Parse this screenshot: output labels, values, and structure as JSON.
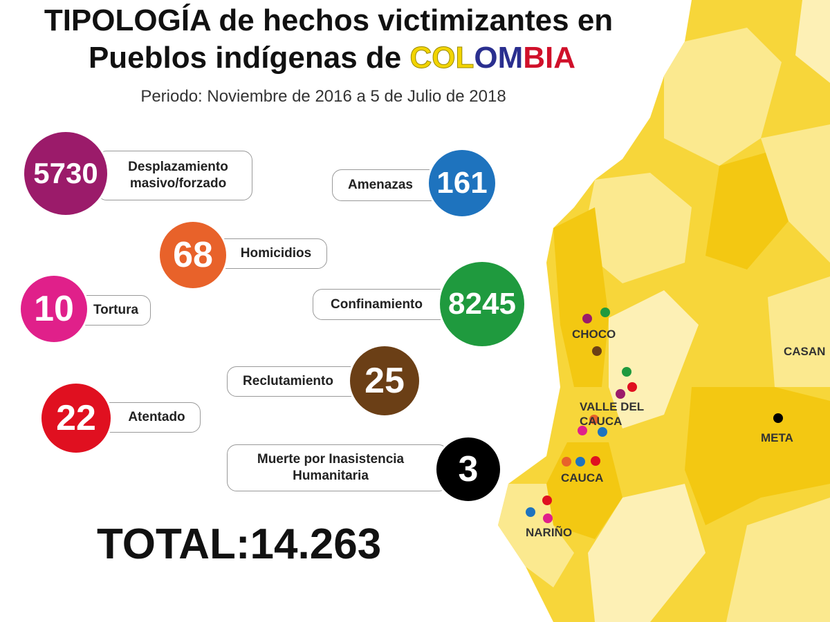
{
  "title": {
    "line1": "TIPOLOGÍA de hechos victimizantes en",
    "line2_prefix": "Pueblos indígenas de",
    "country": {
      "part_yellow": "COL",
      "part_blue": "OM",
      "part_red": "BIA"
    },
    "period": "Periodo: Noviembre de 2016 a 5 de Julio de 2018"
  },
  "facts": [
    {
      "value": "5730",
      "label": "Desplazamiento masivo/forzado",
      "color": "#9b1b6a"
    },
    {
      "value": "161",
      "label": "Amenazas",
      "color": "#1e73be"
    },
    {
      "value": "68",
      "label": "Homicidios",
      "color": "#e8622a"
    },
    {
      "value": "8245",
      "label": "Confinamiento",
      "color": "#1f9a3e"
    },
    {
      "value": "10",
      "label": "Tortura",
      "color": "#e0208a"
    },
    {
      "value": "25",
      "label": "Reclutamiento",
      "color": "#6b3f16"
    },
    {
      "value": "22",
      "label": "Atentado",
      "color": "#e01020"
    },
    {
      "value": "3",
      "label": "Muerte por Inasistencia Humanitaria",
      "color": "#000000"
    }
  ],
  "total": "TOTAL:14.263",
  "map": {
    "departments": [
      "CHOCO",
      "VALLE DEL CAUCA",
      "CAUCA",
      "NARIÑO",
      "META",
      "CASAN"
    ],
    "colors": {
      "dark": "#f3c812",
      "mid": "#f7d63a",
      "light": "#fbe98f",
      "pale": "#fdf0b5"
    }
  }
}
